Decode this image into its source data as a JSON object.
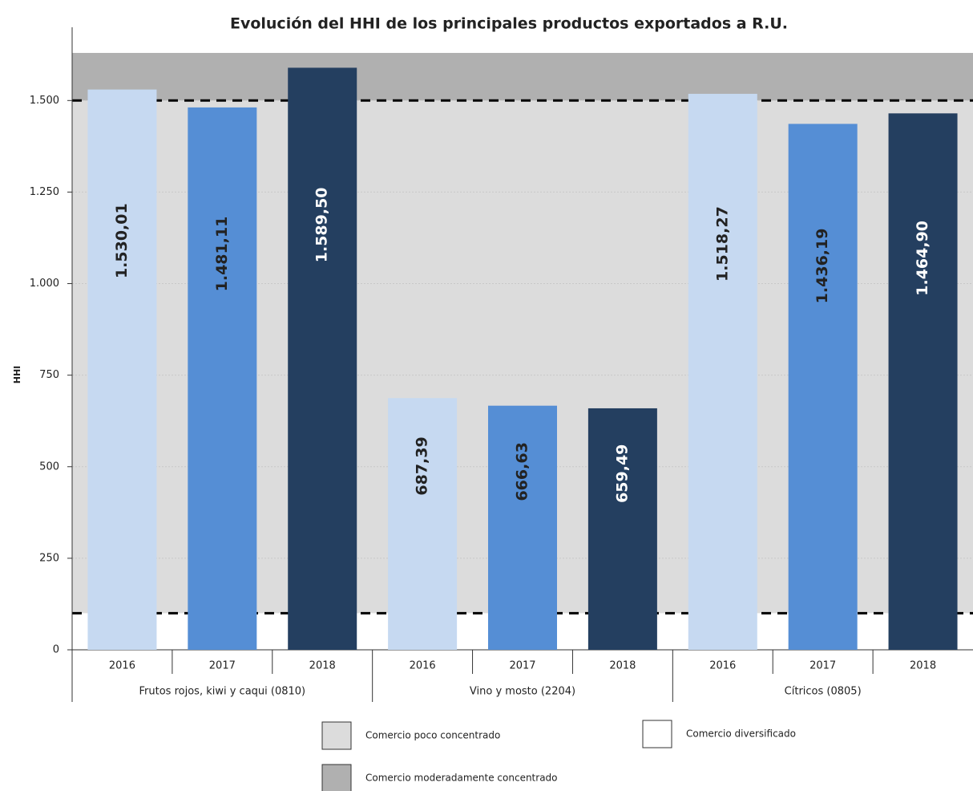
{
  "chart_data": {
    "type": "bar",
    "title": "Evolución del HHI de los principales productos exportados a R.U.",
    "ylabel": "HHI",
    "ylim": [
      0,
      1700
    ],
    "yticks": [
      0,
      250,
      500,
      750,
      {
        "value": 1000,
        "label": "1.000"
      },
      {
        "value": 1250,
        "label": "1.250"
      },
      {
        "value": 1500,
        "label": "1.500"
      }
    ],
    "bar_colors": [
      "#c6d9f1",
      "#558ed5",
      "#243f60"
    ],
    "label_colors": [
      "#222222",
      "#222222",
      "#ffffff"
    ],
    "grid": true,
    "bands": [
      {
        "name": "Comercio diversificado",
        "from": 0,
        "to": 100,
        "color": "#ffffff"
      },
      {
        "name": "Comercio poco concentrado",
        "from": 100,
        "to": 1500,
        "color": "#dcdcdc"
      },
      {
        "name": "Comercio moderadamente concentrado",
        "from": 1500,
        "to": 1630,
        "color": "#b0b0b0"
      }
    ],
    "groups": [
      {
        "name": "Frutos rojos, kiwi y caqui (0810)",
        "categories": [
          "2016",
          "2017",
          "2018"
        ],
        "values": [
          1530.01,
          1481.11,
          1589.5
        ],
        "value_labels": [
          "1.530,01",
          "1.481,11",
          "1.589,50"
        ]
      },
      {
        "name": "Vino y mosto (2204)",
        "categories": [
          "2016",
          "2017",
          "2018"
        ],
        "values": [
          687.39,
          666.63,
          659.49
        ],
        "value_labels": [
          "687,39",
          "666,63",
          "659,49"
        ]
      },
      {
        "name": "Cítricos (0805)",
        "categories": [
          "2016",
          "2017",
          "2018"
        ],
        "values": [
          1518.27,
          1436.19,
          1464.9
        ],
        "value_labels": [
          "1.518,27",
          "1.436,19",
          "1.464,90"
        ]
      }
    ]
  }
}
